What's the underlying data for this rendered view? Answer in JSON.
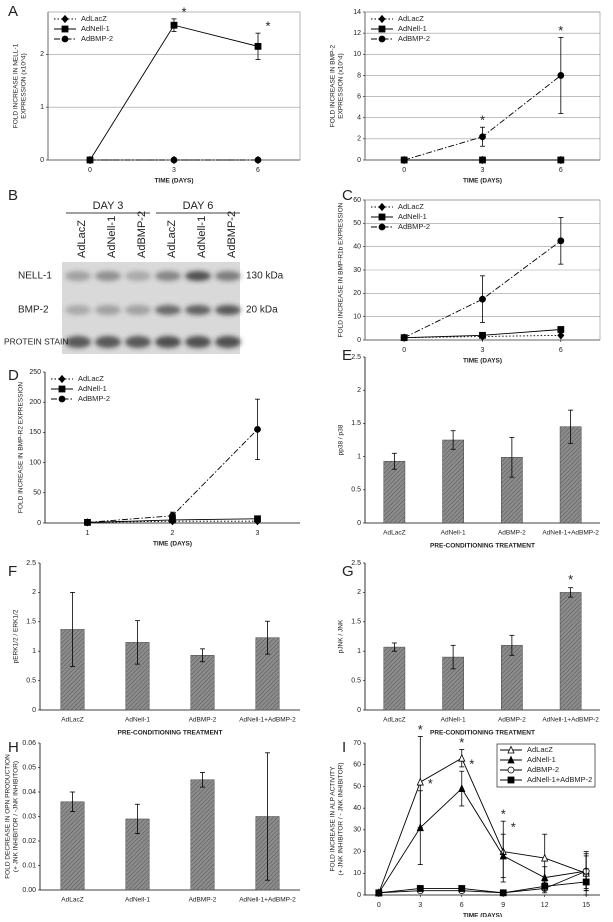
{
  "chart_data": [
    {
      "type": "line",
      "panel": "A",
      "ylabel": [
        "FOLD INCREASE IN NELL-1",
        "EXPRESSION (x10^4)"
      ],
      "xlabel": "TIME (DAYS)",
      "x": [
        0,
        3,
        6
      ],
      "xlim": [
        -1.5,
        7.5
      ],
      "xticks": [
        0,
        3,
        6
      ],
      "ylim": [
        0,
        2.8
      ],
      "yticks": [
        0,
        1,
        2
      ],
      "grid": true,
      "legend": "top-left",
      "series": [
        {
          "name": "AdLacZ",
          "color": "#000000",
          "dash": "dotted",
          "marker": "diamond",
          "values": [
            0,
            0,
            0
          ],
          "errors": [
            0,
            0,
            0
          ]
        },
        {
          "name": "AdNell-1",
          "color": "#000000",
          "dash": "solid",
          "marker": "square",
          "values": [
            0,
            2.55,
            2.15
          ],
          "errors": [
            0,
            0.12,
            0.25
          ],
          "annotations": [
            null,
            "*",
            "*"
          ]
        },
        {
          "name": "AdBMP-2",
          "color": "#000000",
          "dash": "dashdot",
          "marker": "circle",
          "values": [
            0,
            0,
            0
          ],
          "errors": [
            0,
            0,
            0
          ]
        }
      ]
    },
    {
      "type": "line",
      "ylabel": [
        "FOLD INCREASE IN BMP-2",
        "EXPRESSION (x10^4)"
      ],
      "xlabel": "TIME (DAYS)",
      "x": [
        0,
        3,
        6
      ],
      "xlim": [
        -1.5,
        7.5
      ],
      "xticks": [
        0,
        3,
        6
      ],
      "ylim": [
        0,
        14
      ],
      "yticks": [
        0,
        2,
        4,
        6,
        8,
        10,
        12,
        14
      ],
      "grid": true,
      "legend": "top-left",
      "series": [
        {
          "name": "AdLacZ",
          "color": "#000000",
          "dash": "dotted",
          "marker": "diamond",
          "values": [
            0,
            0,
            0
          ],
          "errors": [
            0,
            0,
            0
          ]
        },
        {
          "name": "AdNell-1",
          "color": "#000000",
          "dash": "solid",
          "marker": "square",
          "values": [
            0,
            0,
            0
          ],
          "errors": [
            0,
            0,
            0
          ]
        },
        {
          "name": "AdBMP-2",
          "color": "#000000",
          "dash": "dashdot",
          "marker": "circle",
          "values": [
            0,
            2.2,
            8
          ],
          "errors": [
            0,
            0.9,
            3.6
          ],
          "annotations": [
            null,
            "*",
            "*"
          ]
        }
      ]
    },
    {
      "type": "line",
      "panel": "C",
      "ylabel": "FOLD INCREASE IN BMP-R1b EXPRESSION",
      "xlabel": "TIME (DAYS)",
      "x": [
        0,
        3,
        6
      ],
      "xlim": [
        -1.5,
        7.5
      ],
      "xticks": [
        0,
        3,
        6
      ],
      "ylim": [
        0,
        60
      ],
      "yticks": [
        0,
        10,
        20,
        30,
        40,
        50,
        60
      ],
      "grid": true,
      "legend": "top-left",
      "series": [
        {
          "name": "AdLacZ",
          "color": "#000000",
          "dash": "dotted",
          "marker": "diamond",
          "values": [
            1,
            1.5,
            2
          ],
          "errors": [
            0,
            0,
            0
          ]
        },
        {
          "name": "AdNell-1",
          "color": "#000000",
          "dash": "solid",
          "marker": "square",
          "values": [
            1,
            2,
            4.5
          ],
          "errors": [
            0,
            0.5,
            0.5
          ]
        },
        {
          "name": "AdBMP-2",
          "color": "#000000",
          "dash": "dashdot",
          "marker": "circle",
          "values": [
            1,
            17.5,
            42.5
          ],
          "errors": [
            0,
            10,
            10
          ]
        }
      ]
    },
    {
      "type": "line",
      "panel": "D",
      "ylabel": "FOLD INCREASE IN BMP-R2 EXPRESSION",
      "xlabel": "TIME (DAYS)",
      "x": [
        1,
        2,
        3
      ],
      "xlim": [
        0.5,
        3.5
      ],
      "xticks": [
        1,
        2,
        3
      ],
      "ylim": [
        0,
        250
      ],
      "yticks": [
        0,
        50,
        100,
        150,
        200,
        250
      ],
      "grid": false,
      "legend": "top-left",
      "series": [
        {
          "name": "AdLacZ",
          "color": "#000000",
          "dash": "dotted",
          "marker": "diamond",
          "values": [
            1,
            3,
            3
          ],
          "errors": [
            0,
            2,
            2
          ]
        },
        {
          "name": "AdNell-1",
          "color": "#000000",
          "dash": "solid",
          "marker": "square",
          "values": [
            1,
            5,
            7
          ],
          "errors": [
            0,
            3,
            4
          ]
        },
        {
          "name": "AdBMP-2",
          "color": "#000000",
          "dash": "dashdot",
          "marker": "circle",
          "values": [
            1,
            12,
            155
          ],
          "errors": [
            0,
            6,
            50
          ]
        }
      ]
    },
    {
      "type": "bar",
      "panel": "E",
      "ylabel": "pp38 / p38",
      "xlabel": "PRE-CONDITIONING TREATMENT",
      "color": "#8c8c8c",
      "categories": [
        "AdLacZ",
        "AdNell-1",
        "AdBMP-2",
        "AdNell-1+AdBMP-2"
      ],
      "values": [
        0.93,
        1.25,
        0.99,
        1.45
      ],
      "errors": [
        0.12,
        0.14,
        0.3,
        0.25
      ],
      "ylim": [
        0,
        2.5
      ],
      "yticks": [
        0,
        0.5,
        1,
        1.5,
        2,
        2.5
      ],
      "grid": false
    },
    {
      "type": "bar",
      "panel": "F",
      "ylabel": "pERK1/2 / ERK1/2",
      "xlabel": "PRE-CONDITIONING TREATMENT",
      "color": "#8c8c8c",
      "categories": [
        "AdLacZ",
        "AdNell-1",
        "AdBMP-2",
        "AdNell-1+AdBMP-2"
      ],
      "values": [
        1.37,
        1.15,
        0.93,
        1.23
      ],
      "errors": [
        0.63,
        0.37,
        0.11,
        0.28
      ],
      "ylim": [
        0,
        2.5
      ],
      "yticks": [
        0,
        0.5,
        1,
        1.5,
        2,
        2.5
      ],
      "grid": false
    },
    {
      "type": "bar",
      "panel": "G",
      "ylabel": "pJNK / JNK",
      "xlabel": "PRE-CONDITIONING TREATMENT",
      "color": "#8c8c8c",
      "categories": [
        "AdLacZ",
        "AdNell-1",
        "AdBMP-2",
        "AdNell-1+AdBMP-2"
      ],
      "values": [
        1.07,
        0.9,
        1.1,
        2.0
      ],
      "errors": [
        0.07,
        0.2,
        0.17,
        0.08
      ],
      "annotations": [
        null,
        null,
        null,
        "*"
      ],
      "ylim": [
        0,
        2.5
      ],
      "yticks": [
        0,
        0.5,
        1,
        1.5,
        2,
        2.5
      ],
      "grid": false
    },
    {
      "type": "bar",
      "panel": "H",
      "ylabel": [
        "FOLD DECREASE IN OPN PRODUCTION",
        "(+ JNK INHIBITOR / -JNK INHIBITOR)"
      ],
      "color": "#8c8c8c",
      "categories": [
        "AdLacZ",
        "AdNell-1",
        "AdBMP-2",
        "AdNell-1+AdBMP-2"
      ],
      "values": [
        0.036,
        0.029,
        0.045,
        0.03
      ],
      "errors": [
        0.004,
        0.006,
        0.003,
        0.026
      ],
      "ylim": [
        0,
        0.06
      ],
      "yticks": [
        {
          "value": 0,
          "label": "0.00"
        },
        {
          "value": 0.01,
          "label": "0.01"
        },
        {
          "value": 0.02,
          "label": "0.02"
        },
        {
          "value": 0.03,
          "label": "0.03"
        },
        {
          "value": 0.04,
          "label": "0.04"
        },
        {
          "value": 0.05,
          "label": "0.05"
        },
        {
          "value": 0.06,
          "label": "0.06"
        }
      ],
      "grid": false
    },
    {
      "type": "line",
      "panel": "I",
      "ylabel": [
        "FOLD INCREASE IN ALP ACTIVITY",
        "(+ JNK INHIBITOR / - JNK INHIBITOR)"
      ],
      "xlabel": "TIME (DAYS)",
      "x": [
        0,
        3,
        6,
        9,
        12,
        15
      ],
      "xlim": [
        -1,
        16
      ],
      "xticks": [
        0,
        3,
        6,
        9,
        12,
        15
      ],
      "ylim": [
        0,
        70
      ],
      "yticks": [
        0,
        10,
        20,
        30,
        40,
        50,
        60,
        70
      ],
      "grid": false,
      "legend": "top-right",
      "series": [
        {
          "name": "AdLacZ",
          "color": "#000000",
          "dash": "solid",
          "marker": "triangle-open",
          "values": [
            1,
            52,
            63,
            20,
            17,
            10
          ],
          "errors": [
            0,
            21,
            4,
            14,
            11,
            8
          ],
          "annotations": [
            null,
            "*",
            "*",
            "*",
            null,
            null
          ]
        },
        {
          "name": "AdNell-1",
          "color": "#000000",
          "dash": "solid",
          "marker": "triangle",
          "values": [
            1,
            31,
            49,
            18,
            8,
            11
          ],
          "errors": [
            0,
            17,
            8,
            10,
            5,
            8
          ],
          "annotations": [
            null,
            "*",
            "*",
            "*",
            null,
            null
          ]
        },
        {
          "name": "AdBMP-2",
          "color": "#000000",
          "dash": "solid",
          "marker": "circle-open",
          "values": [
            1,
            2,
            2,
            1,
            3,
            11
          ],
          "errors": [
            0,
            1,
            1,
            1,
            2,
            9
          ]
        },
        {
          "name": "AdNell-1+AdBMP-2",
          "color": "#000000",
          "dash": "solid",
          "marker": "square",
          "values": [
            1,
            3,
            3,
            1,
            4,
            6
          ],
          "errors": [
            0,
            1,
            1,
            1,
            2,
            6
          ]
        }
      ]
    }
  ],
  "blot": {
    "panel": "B",
    "groups": [
      "DAY 3",
      "DAY 6"
    ],
    "lanes": [
      "AdLacZ",
      "AdNell-1",
      "AdBMP-2",
      "AdLacZ",
      "AdNell-1",
      "AdBMP-2"
    ],
    "rows": [
      "NELL-1",
      "BMP-2",
      "PROTEIN STAIN"
    ],
    "sizes": [
      "130 kDa",
      "20 kDa"
    ]
  }
}
